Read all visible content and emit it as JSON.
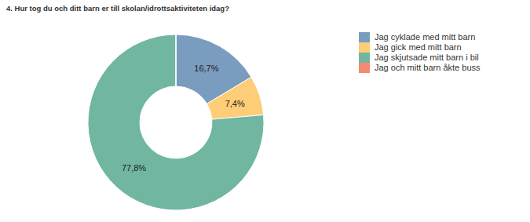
{
  "chart_data": {
    "type": "pie",
    "title": "4. Hur tog du och ditt barn er till skolan/idrottsaktiviteten idag?",
    "categories": [
      "Jag cyklade med mitt barn",
      "Jag gick med mitt barn",
      "Jag skjutsade mitt barn i bil",
      "Jag och mitt barn åkte buss"
    ],
    "values": [
      16.7,
      7.4,
      77.8,
      0
    ],
    "value_labels": [
      "16,7%",
      "7,4%",
      "77,8%",
      null
    ],
    "colors": [
      "#7a9cbf",
      "#fdcd78",
      "#70b6a0",
      "#f58a6f"
    ],
    "data_labels": true,
    "legend": "right"
  }
}
